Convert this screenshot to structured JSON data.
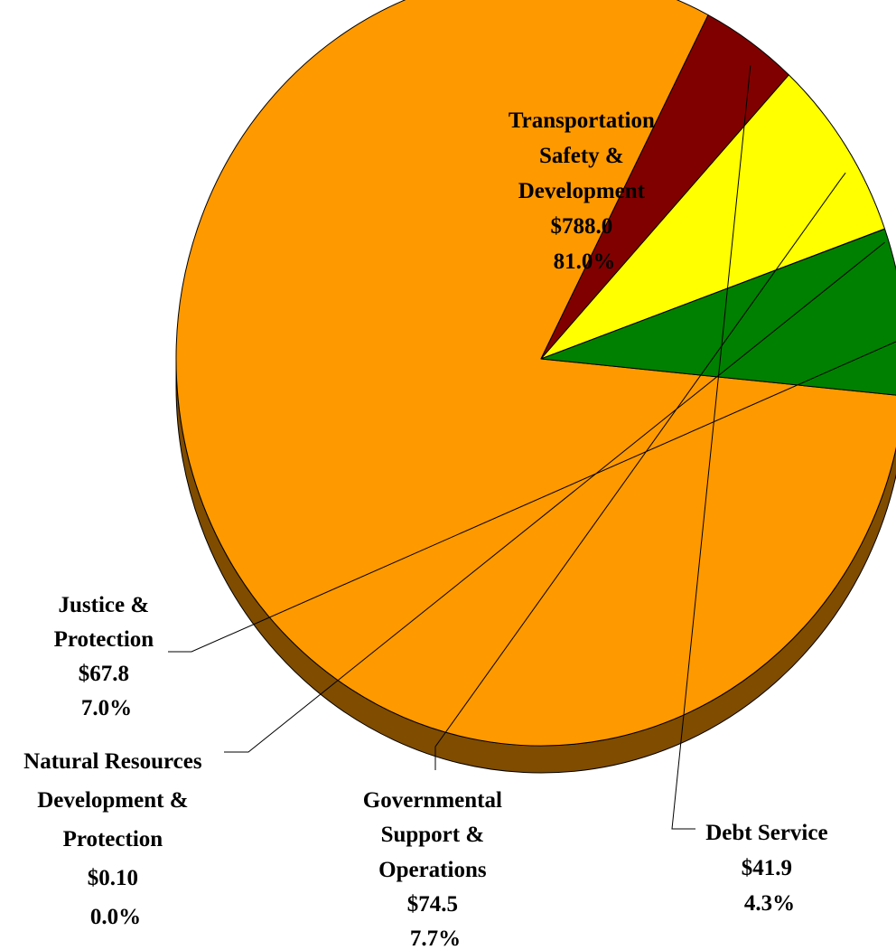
{
  "chart_data": {
    "type": "pie",
    "style": "3d",
    "title": "",
    "slices": [
      {
        "name": "Transportation Safety & Development",
        "lines": [
          "Transportation",
          "Safety &",
          "Development"
        ],
        "amount_label": "$788.0",
        "percent_label": "81.0%",
        "value": 788.0,
        "percent": 81.0,
        "color": "#ff9900",
        "side_color": "#7f4c00"
      },
      {
        "name": "Debt Service",
        "lines": [
          "Debt Service"
        ],
        "amount_label": "$41.9",
        "percent_label": "4.3%",
        "value": 41.9,
        "percent": 4.3,
        "color": "#800000",
        "side_color": "#400000"
      },
      {
        "name": "Governmental Support & Operations",
        "lines": [
          "Governmental",
          "Support &",
          "Operations"
        ],
        "amount_label": "$74.5",
        "percent_label": "7.7%",
        "value": 74.5,
        "percent": 7.7,
        "color": "#ffff00",
        "side_color": "#808000"
      },
      {
        "name": "Natural Resources Development & Protection",
        "lines": [
          "Natural Resources",
          "Development &",
          "Protection"
        ],
        "amount_label": "$0.10",
        "percent_label": "0.0%",
        "value": 0.1,
        "percent": 0.0,
        "color": "#00cc66",
        "side_color": "#006633"
      },
      {
        "name": "Justice & Protection",
        "lines": [
          "Justice &",
          "Protection"
        ],
        "amount_label": "$67.8",
        "percent_label": "7.0%",
        "value": 67.8,
        "percent": 7.0,
        "color": "#008000",
        "side_color": "#004000"
      }
    ],
    "units": "",
    "legend": "none"
  }
}
